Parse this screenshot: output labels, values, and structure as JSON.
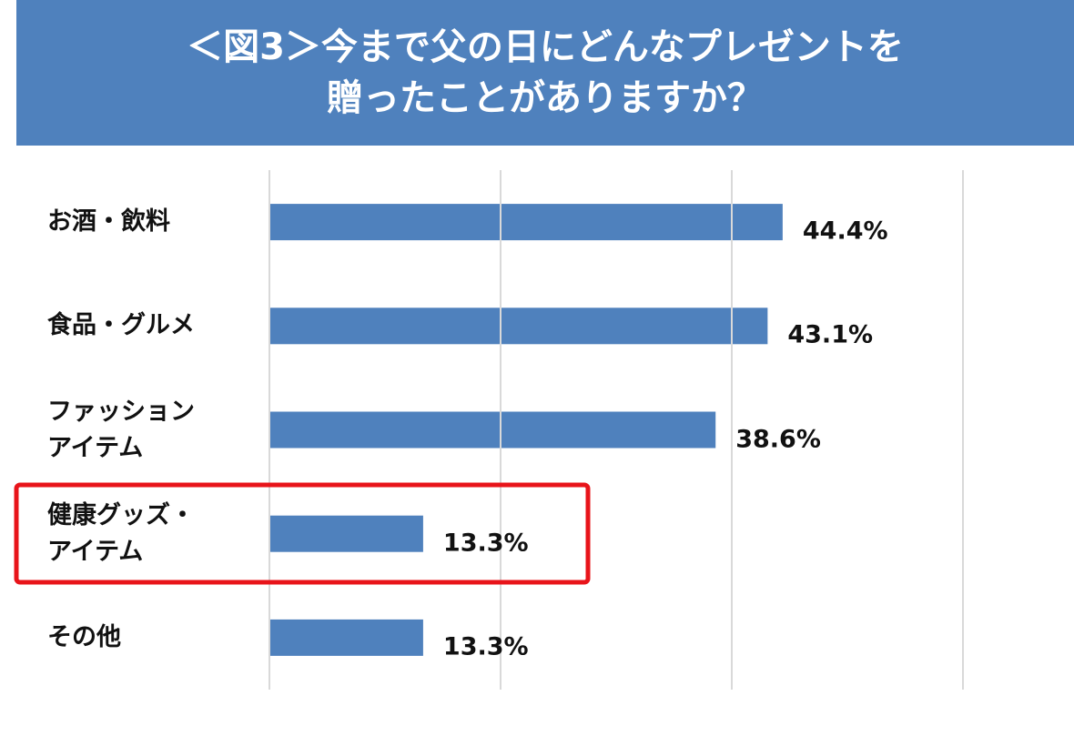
{
  "chart_data": {
    "type": "bar",
    "orientation": "horizontal",
    "title": "＜図3＞今まで父の日にどんなプレゼントを\n贈ったことがありますか？",
    "categories": [
      "お酒・飲料",
      "食品・グルメ",
      "ファッション\nアイテム",
      "健康グッズ・\nアイテム",
      "その他"
    ],
    "values": [
      44.4,
      43.1,
      38.6,
      13.3,
      13.3
    ],
    "value_labels": [
      "44.4%",
      "43.1%",
      "38.6%",
      "13.3%",
      "13.3%"
    ],
    "color": "#4f81bd",
    "xlim": [
      0,
      60
    ],
    "xticks": [
      0,
      20,
      40,
      60
    ],
    "grid": true
  }
}
